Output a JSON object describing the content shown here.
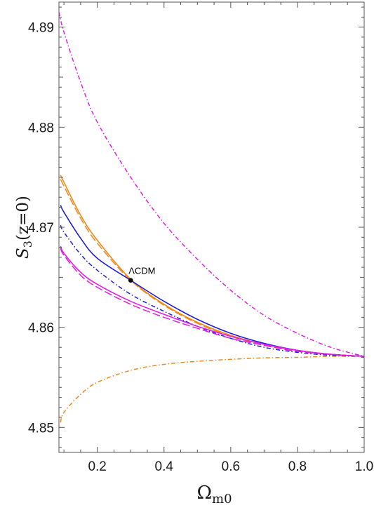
{
  "chart_data": {
    "type": "line",
    "title": "",
    "xlabel": "Ω",
    "xlabel_sub": "m0",
    "ylabel": "S",
    "ylabel_sub": "3",
    "ylabel_suffix": "(z=0)",
    "xlim": [
      0.085,
      1.0
    ],
    "ylim": [
      4.8475,
      4.8925
    ],
    "xticks": [
      0.2,
      0.4,
      0.6,
      0.8,
      1.0
    ],
    "xtick_labels": [
      "0.2",
      "0.4",
      "0.6",
      "0.8",
      "1.0"
    ],
    "yticks": [
      4.85,
      4.86,
      4.87,
      4.88,
      4.89
    ],
    "ytick_labels": [
      "4.85",
      "4.86",
      "4.87",
      "4.88",
      "4.89"
    ],
    "grid": false,
    "legend": "none",
    "series": [
      {
        "color": "#e8311e",
        "style": "dashdot",
        "display_color": "#f08a1c",
        "x": [
          0.09,
          0.1,
          0.15,
          0.2,
          0.3,
          0.4,
          0.5,
          0.6,
          0.7,
          0.8,
          0.9,
          1.0
        ],
        "y": [
          4.8505,
          4.8515,
          4.8533,
          4.8545,
          4.8557,
          4.8563,
          4.8566,
          4.8568,
          4.85695,
          4.857,
          4.8571,
          4.8571
        ]
      },
      {
        "color": "#e020e0",
        "style": "dashdot",
        "x": [
          0.085,
          0.1,
          0.15,
          0.2,
          0.3,
          0.4,
          0.5,
          0.6,
          0.7,
          0.8,
          0.9,
          1.0
        ],
        "y": [
          4.8915,
          4.8895,
          4.8845,
          4.8805,
          4.875,
          4.8704,
          4.8668,
          4.8637,
          4.8612,
          4.8594,
          4.858,
          4.8571
        ]
      },
      {
        "color": "#f08a1c",
        "style": "solid",
        "x": [
          0.09,
          0.1,
          0.15,
          0.2,
          0.3,
          0.4,
          0.5,
          0.6,
          0.7,
          0.8,
          0.9,
          1.0
        ],
        "y": [
          4.8752,
          4.8745,
          4.8712,
          4.8687,
          4.8648,
          4.8623,
          4.8605,
          4.8592,
          4.8583,
          4.8577,
          4.8573,
          4.8571
        ]
      },
      {
        "color": "#f08a1c",
        "style": "dashed",
        "x": [
          0.09,
          0.1,
          0.15,
          0.2,
          0.3,
          0.4,
          0.5,
          0.6,
          0.7,
          0.8,
          0.9,
          1.0
        ],
        "y": [
          4.8748,
          4.8741,
          4.8709,
          4.8684,
          4.8647,
          4.8622,
          4.8604,
          4.8591,
          4.8582,
          4.8576,
          4.8573,
          4.8571
        ]
      },
      {
        "color": "#1f1fd6",
        "style": "solid",
        "x": [
          0.09,
          0.1,
          0.15,
          0.2,
          0.3,
          0.4,
          0.5,
          0.6,
          0.7,
          0.8,
          0.9,
          1.0
        ],
        "y": [
          4.8722,
          4.8715,
          4.8689,
          4.8669,
          4.8647,
          4.8626,
          4.8608,
          4.8594,
          4.8584,
          4.8577,
          4.8573,
          4.8571
        ]
      },
      {
        "color": "#1f1fd6",
        "style": "dashdot",
        "x": [
          0.09,
          0.1,
          0.15,
          0.2,
          0.3,
          0.4,
          0.5,
          0.6,
          0.7,
          0.8,
          0.9,
          1.0
        ],
        "y": [
          4.8702,
          4.8695,
          4.8673,
          4.8657,
          4.8633,
          4.8616,
          4.8601,
          4.8589,
          4.858,
          4.8575,
          4.8572,
          4.8571
        ]
      },
      {
        "color": "#e020e0",
        "style": "solid",
        "x": [
          0.09,
          0.1,
          0.15,
          0.2,
          0.3,
          0.4,
          0.5,
          0.6,
          0.7,
          0.8,
          0.9,
          1.0
        ],
        "y": [
          4.8681,
          4.8674,
          4.8655,
          4.8643,
          4.8626,
          4.8613,
          4.8601,
          4.8591,
          4.8583,
          4.8577,
          4.8573,
          4.8571
        ]
      },
      {
        "color": "#e020e0",
        "style": "dashed",
        "x": [
          0.09,
          0.1,
          0.15,
          0.2,
          0.3,
          0.4,
          0.5,
          0.6,
          0.7,
          0.8,
          0.9,
          1.0
        ],
        "y": [
          4.8679,
          4.8672,
          4.8652,
          4.864,
          4.8623,
          4.861,
          4.8599,
          4.8589,
          4.8582,
          4.8576,
          4.8573,
          4.8571
        ]
      }
    ],
    "points": [
      {
        "label": "ΛCDM",
        "x": 0.3,
        "y": 4.8647,
        "color": "#000000"
      }
    ]
  }
}
